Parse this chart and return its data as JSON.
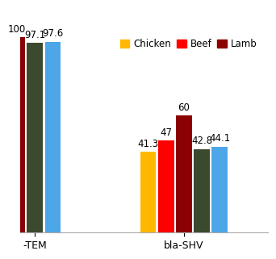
{
  "groups": [
    "bla-TEM",
    "bla-SHV"
  ],
  "legend_labels": [
    "Chicken",
    "Beef",
    "Lamb"
  ],
  "legend_colors": [
    "#FFB800",
    "#FF0000",
    "#8B0000"
  ],
  "values_tem": [
    100,
    97.1,
    97.6
  ],
  "values_shv": [
    41.3,
    47,
    60,
    42.8,
    44.1
  ],
  "bar_colors_tem": [
    "#8B0000",
    "#3B4A2F",
    "#4DA6E8"
  ],
  "bar_colors_shv": [
    "#FFB800",
    "#FF0000",
    "#8B0000",
    "#3B4A2F",
    "#4DA6E8"
  ],
  "bar_labels_tem": [
    "100",
    "97.1",
    "97.6"
  ],
  "bar_labels_shv": [
    "41.3",
    "47",
    "60",
    "42.8",
    "44.1"
  ],
  "ylim": [
    0,
    115
  ],
  "background_color": "#FFFFFF",
  "grid_color": "#CCCCCC",
  "label_fontsize": 8.5,
  "legend_fontsize": 8.5,
  "tick_fontsize": 9
}
